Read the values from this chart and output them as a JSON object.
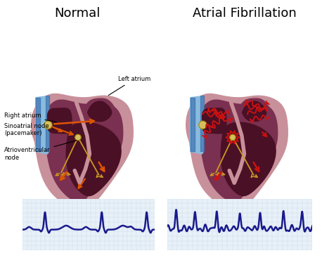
{
  "title_normal": "Normal",
  "title_afib": "Atrial Fibrillation",
  "label_right_atrium": "Right atrium",
  "label_left_atrium": "Left atrium",
  "label_sa_node": "Sinoatrial node\n(pacemaker)",
  "label_av_node": "Atrioventricular\nnode",
  "bg_color": "#ffffff",
  "ecg_color": "#1a1a8c",
  "grid_color_light": "#ccdde8",
  "grid_bg": "#e8f0f8",
  "heart_mauve": "#c8909a",
  "heart_mid": "#7a3050",
  "heart_dark": "#4a1025",
  "blue_vessel": "#5599cc",
  "blue_vessel_light": "#88bbdd",
  "sa_node_color": "#d4c060",
  "arrow_normal": "#dd5500",
  "arrow_afib": "#cc1111",
  "conduction_color": "#cc9922",
  "title_fontsize": 13,
  "label_fontsize": 6.0
}
